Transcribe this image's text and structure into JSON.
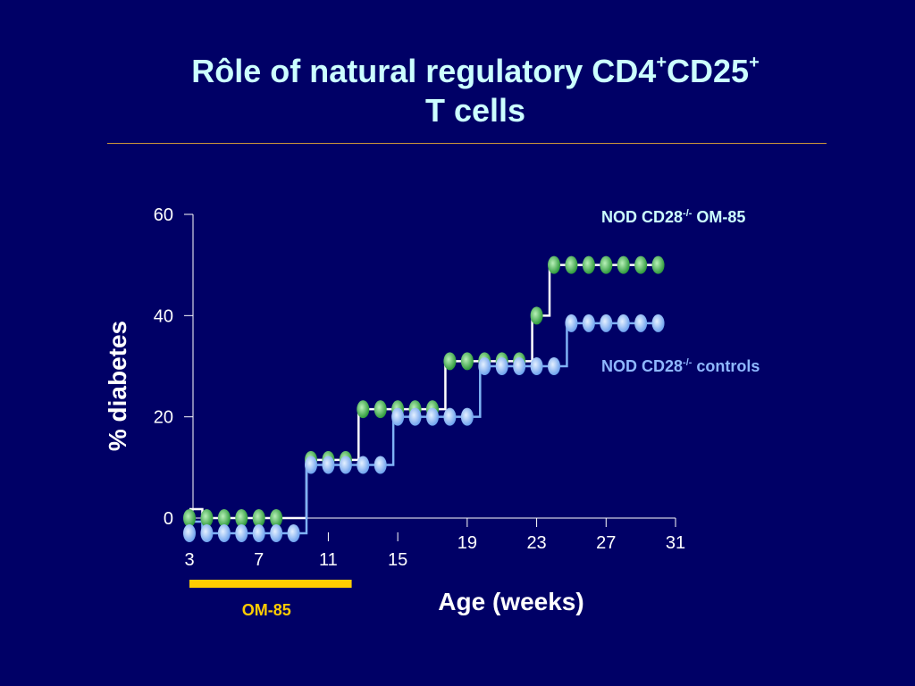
{
  "slide": {
    "title_line1_a": "Rôle of natural regulatory  CD4",
    "title_sup1": "+",
    "title_line1_b": "CD25",
    "title_sup2": "+",
    "title_line2": "T cells"
  },
  "chart_data": {
    "type": "line",
    "xlabel": "Age (weeks)",
    "ylabel": "% diabetes",
    "xlim": [
      3,
      31
    ],
    "ylim": [
      0,
      60
    ],
    "x_ticks": [
      3,
      7,
      11,
      15,
      19,
      23,
      27,
      31
    ],
    "y_ticks": [
      0,
      20,
      40,
      60
    ],
    "grid": false,
    "colors": {
      "background": "#000066",
      "axis": "#FFFFFF",
      "om85_series": "#33AA44",
      "controls_series": "#88BBFF",
      "om85_band": "#FFCC00"
    },
    "series": [
      {
        "name_main": "NOD CD28",
        "name_sup": "-/-",
        "name_suffix": " OM-85",
        "color": "#33AA44",
        "points": [
          [
            3,
            0
          ],
          [
            4,
            0
          ],
          [
            5,
            0
          ],
          [
            6,
            0
          ],
          [
            7,
            0
          ],
          [
            8,
            0
          ],
          [
            10,
            11.5
          ],
          [
            11,
            11.5
          ],
          [
            12,
            11.5
          ],
          [
            13,
            21.5
          ],
          [
            14,
            21.5
          ],
          [
            15,
            21.5
          ],
          [
            16,
            21.5
          ],
          [
            17,
            21.5
          ],
          [
            18,
            31
          ],
          [
            19,
            31
          ],
          [
            20,
            31
          ],
          [
            21,
            31
          ],
          [
            22,
            31
          ],
          [
            23,
            40
          ],
          [
            24,
            50
          ],
          [
            25,
            50
          ],
          [
            26,
            50
          ],
          [
            27,
            50
          ],
          [
            28,
            50
          ],
          [
            29,
            50
          ],
          [
            30,
            50
          ]
        ]
      },
      {
        "name_main": "NOD CD28",
        "name_sup": "-/-",
        "name_suffix": "  controls",
        "color": "#88BBFF",
        "points": [
          [
            3,
            -3
          ],
          [
            4,
            -3
          ],
          [
            5,
            -3
          ],
          [
            6,
            -3
          ],
          [
            7,
            -3
          ],
          [
            8,
            -3
          ],
          [
            9,
            -3
          ],
          [
            10,
            10.5
          ],
          [
            11,
            10.5
          ],
          [
            12,
            10.5
          ],
          [
            13,
            10.5
          ],
          [
            14,
            10.5
          ],
          [
            15,
            20
          ],
          [
            16,
            20
          ],
          [
            17,
            20
          ],
          [
            18,
            20
          ],
          [
            19,
            20
          ],
          [
            20,
            30
          ],
          [
            21,
            30
          ],
          [
            22,
            30
          ],
          [
            23,
            30
          ],
          [
            24,
            30
          ],
          [
            25,
            38.5
          ],
          [
            26,
            38.5
          ],
          [
            27,
            38.5
          ],
          [
            28,
            38.5
          ],
          [
            29,
            38.5
          ],
          [
            30,
            38.5
          ]
        ]
      }
    ],
    "annotations": [
      {
        "label": "OM-85",
        "x_start": 3,
        "x_end": 12.5
      }
    ]
  }
}
